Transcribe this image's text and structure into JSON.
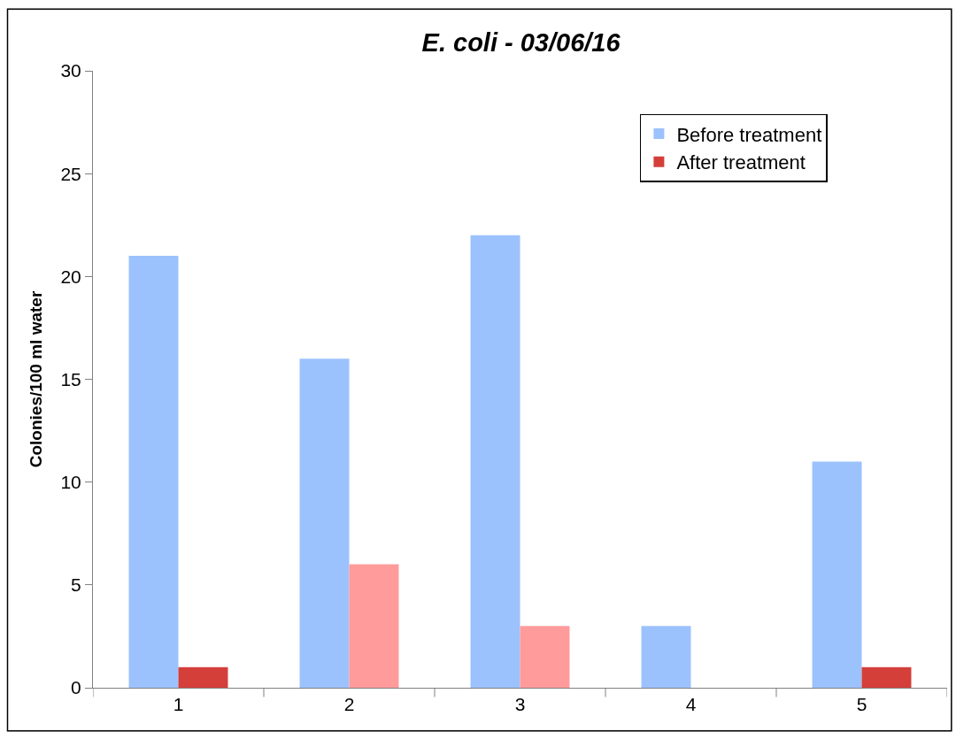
{
  "chart_data": {
    "type": "bar",
    "title": "E. coli - 03/06/16",
    "ylabel": "Colonies/100 ml water",
    "categories": [
      "1",
      "2",
      "3",
      "4",
      "5"
    ],
    "series": [
      {
        "name": "Before treatment",
        "color": "#9cc2fd",
        "values": [
          21,
          16,
          22,
          3,
          11
        ]
      },
      {
        "name": "After treatment",
        "color": "#ff9b9b",
        "colors": [
          "#d43f3a",
          "#ff9b9b",
          "#ff9b9b",
          "#ff9b9b",
          "#d43f3a"
        ],
        "values": [
          1,
          6,
          3,
          0,
          1
        ]
      }
    ],
    "ylim": [
      0,
      30
    ],
    "yticks": [
      0,
      5,
      10,
      15,
      20,
      25,
      30
    ],
    "legend": "top right"
  }
}
